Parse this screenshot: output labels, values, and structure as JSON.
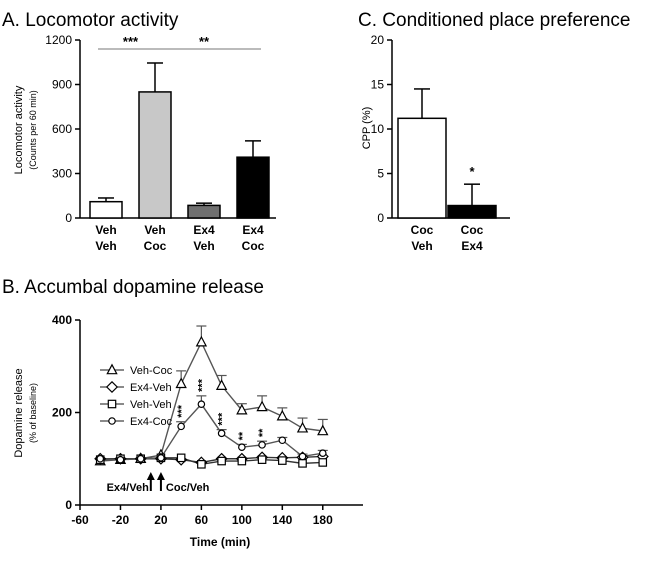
{
  "chart_data": [
    {
      "id": "A",
      "type": "bar",
      "title": "A. Locomotor activity",
      "ylabel": "Locomotor activity",
      "ylabel_sub": "(Counts per 60 min)",
      "ylim": [
        0,
        1200
      ],
      "yticks": [
        0,
        300,
        600,
        900,
        1200
      ],
      "categories": [
        [
          "Veh",
          "Veh"
        ],
        [
          "Veh",
          "Coc"
        ],
        [
          "Ex4",
          "Veh"
        ],
        [
          "Ex4",
          "Coc"
        ]
      ],
      "values": [
        110,
        850,
        85,
        410
      ],
      "errors": [
        25,
        195,
        15,
        110
      ],
      "colors": [
        "#ffffff",
        "#c8c8c8",
        "#707070",
        "#000000"
      ],
      "significance": [
        {
          "from": 0,
          "to": 1,
          "label": "***"
        },
        {
          "from": 1,
          "to": 3,
          "label": "**"
        }
      ]
    },
    {
      "id": "C",
      "type": "bar",
      "title": "C. Conditioned place preference",
      "ylabel": "CPP (%)",
      "ylim": [
        0,
        20
      ],
      "yticks": [
        0,
        5,
        10,
        15,
        20
      ],
      "categories": [
        [
          "Coc",
          "Veh"
        ],
        [
          "Coc",
          "Ex4"
        ]
      ],
      "values": [
        11.2,
        1.4
      ],
      "errors": [
        3.3,
        2.4
      ],
      "colors": [
        "#ffffff",
        "#000000"
      ],
      "bar_labels": [
        "",
        "*"
      ]
    },
    {
      "id": "B",
      "type": "line",
      "title": "B. Accumbal dopamine release",
      "xlabel": "Time (min)",
      "ylabel": "Dopamine release",
      "ylabel_sub": "(% of baseline)",
      "xlim": [
        -60,
        200
      ],
      "ylim": [
        0,
        400
      ],
      "xticks": [
        -60,
        -20,
        20,
        60,
        100,
        140,
        180
      ],
      "yticks": [
        0,
        200,
        400
      ],
      "x": [
        -40,
        -20,
        0,
        20,
        40,
        60,
        80,
        100,
        120,
        140,
        160,
        180
      ],
      "series": [
        {
          "name": "Veh-Coc",
          "marker": "triangle",
          "values": [
            95,
            98,
            100,
            108,
            262,
            352,
            258,
            205,
            212,
            192,
            166,
            160
          ],
          "errors": [
            0,
            0,
            0,
            0,
            28,
            35,
            22,
            14,
            24,
            18,
            22,
            25
          ]
        },
        {
          "name": "Ex4-Veh",
          "marker": "diamond",
          "values": [
            100,
            100,
            100,
            100,
            98,
            92,
            100,
            100,
            103,
            102,
            103,
            105
          ],
          "errors": [
            0,
            0,
            0,
            0,
            0,
            0,
            0,
            0,
            0,
            0,
            0,
            0
          ]
        },
        {
          "name": "Veh-Veh",
          "marker": "square",
          "values": [
            98,
            100,
            100,
            102,
            102,
            88,
            95,
            95,
            98,
            96,
            90,
            92
          ],
          "errors": [
            0,
            0,
            0,
            0,
            0,
            0,
            0,
            0,
            0,
            0,
            0,
            0
          ]
        },
        {
          "name": "Ex4-Coc",
          "marker": "circle",
          "values": [
            100,
            98,
            100,
            102,
            170,
            218,
            155,
            125,
            130,
            140,
            105,
            112
          ],
          "errors": [
            0,
            0,
            0,
            0,
            10,
            18,
            8,
            6,
            8,
            6,
            5,
            6
          ]
        }
      ],
      "annotations": [
        {
          "x": 40,
          "label": "***"
        },
        {
          "x": 60,
          "label": "***"
        },
        {
          "x": 80,
          "label": "***"
        },
        {
          "x": 100,
          "label": "**"
        },
        {
          "x": 120,
          "label": "**"
        }
      ],
      "arrows": [
        {
          "x": 10,
          "label": "Ex4/Veh"
        },
        {
          "x": 20,
          "label": "Coc/Veh"
        }
      ]
    }
  ]
}
